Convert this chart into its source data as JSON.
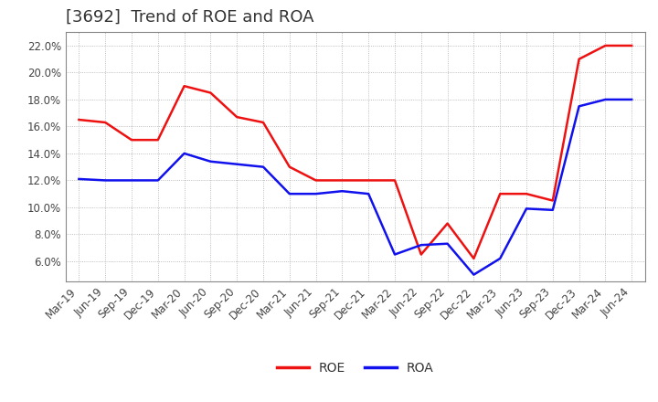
{
  "title": "[3692]  Trend of ROE and ROA",
  "x_labels": [
    "Mar-19",
    "Jun-19",
    "Sep-19",
    "Dec-19",
    "Mar-20",
    "Jun-20",
    "Sep-20",
    "Dec-20",
    "Mar-21",
    "Jun-21",
    "Sep-21",
    "Dec-21",
    "Mar-22",
    "Jun-22",
    "Sep-22",
    "Dec-22",
    "Mar-23",
    "Jun-23",
    "Sep-23",
    "Dec-23",
    "Mar-24",
    "Jun-24"
  ],
  "roe": [
    16.5,
    16.3,
    15.0,
    15.0,
    19.0,
    18.5,
    16.7,
    16.3,
    13.0,
    12.0,
    12.0,
    12.0,
    12.0,
    6.5,
    8.8,
    6.2,
    11.0,
    11.0,
    10.5,
    21.0,
    22.0,
    22.0
  ],
  "roa": [
    12.1,
    12.0,
    12.0,
    12.0,
    14.0,
    13.4,
    13.2,
    13.0,
    11.0,
    11.0,
    11.2,
    11.0,
    6.5,
    7.2,
    7.3,
    5.0,
    6.2,
    9.9,
    9.8,
    17.5,
    18.0,
    18.0
  ],
  "roe_color": "#EE1111",
  "roa_color": "#1111EE",
  "background_color": "#FFFFFF",
  "plot_bg_color": "#FFFFFF",
  "grid_color": "#AAAAAA",
  "ylim_min": 4.5,
  "ylim_max": 23.0,
  "yticks": [
    6.0,
    8.0,
    10.0,
    12.0,
    14.0,
    16.0,
    18.0,
    20.0,
    22.0
  ],
  "legend_roe": "ROE",
  "legend_roa": "ROA",
  "title_fontsize": 13,
  "axis_fontsize": 8.5,
  "legend_fontsize": 10
}
